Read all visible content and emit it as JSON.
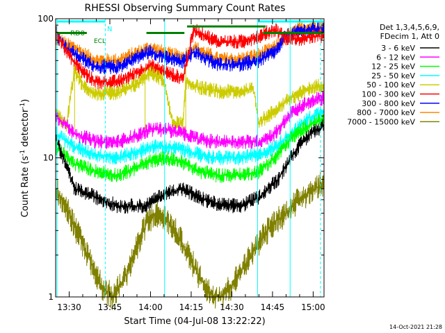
{
  "chart_data": {
    "type": "line",
    "title": "RHESSI Observing Summary Count Rates",
    "xlabel": "Start Time (04-Jul-08 13:22:22)",
    "ylabel_main": "Count Rate (s",
    "ylabel_sup1": "-1",
    "ylabel_mid": " detector",
    "ylabel_sup2": "-1",
    "ylabel_end": ")",
    "yscale": "log",
    "ylim": [
      1,
      100
    ],
    "xlim_minutes": [
      805.0,
      904.0
    ],
    "x_ticks": [
      {
        "label": "13:30",
        "minutes": 810
      },
      {
        "label": "13:45",
        "minutes": 825
      },
      {
        "label": "14:00",
        "minutes": 840
      },
      {
        "label": "14:15",
        "minutes": 855
      },
      {
        "label": "14:30",
        "minutes": 870
      },
      {
        "label": "14:45",
        "minutes": 885
      },
      {
        "label": "15:00",
        "minutes": 900
      }
    ],
    "y_ticks": [
      {
        "label": "1",
        "value": 1
      },
      {
        "label": "10",
        "value": 10
      },
      {
        "label": "100",
        "value": 100
      }
    ],
    "legend_header": [
      "Det 1,3,4,5,6,9,",
      "FDecim 1, Att 0"
    ],
    "legend_position": "right",
    "annotations": {
      "rd0": "RD0",
      "n": "N",
      "ecl": "ECL"
    },
    "night_intervals": [
      [
        805.0,
        827.0
      ],
      [
        844.0,
        872.0
      ]
    ],
    "night_bar_values": [
      95.5,
      88.0
    ],
    "night_marks_minutes": [
      805.5,
      845.2,
      879.5,
      891.5
    ],
    "night_dashed_minutes": [
      823.3,
      902.7
    ],
    "ecl_intervals": [
      [
        805.5,
        810.5
      ],
      [
        857.3,
        872.2
      ]
    ],
    "saa_bar_value": 79.0,
    "dataset_breaks_minutes": [
      812.0,
      838.0,
      853.0,
      879.5
    ],
    "time_stamp": "14-Oct-2021 21:28",
    "series": [
      {
        "name": "3 - 6 keV",
        "color": "#000000",
        "points": [
          [
            805,
            14
          ],
          [
            812,
            6
          ],
          [
            820,
            5.2
          ],
          [
            828,
            4.5
          ],
          [
            838,
            4.5
          ],
          [
            845,
            5.5
          ],
          [
            852,
            6
          ],
          [
            858,
            5.2
          ],
          [
            865,
            4.6
          ],
          [
            873,
            4.5
          ],
          [
            880,
            5.2
          ],
          [
            887,
            7
          ],
          [
            893,
            11
          ],
          [
            899,
            15
          ],
          [
            904,
            17
          ]
        ]
      },
      {
        "name": "6 - 12 keV",
        "color": "#ff00ff",
        "points": [
          [
            805,
            20
          ],
          [
            812,
            15
          ],
          [
            820,
            13
          ],
          [
            828,
            13
          ],
          [
            835,
            14.5
          ],
          [
            840,
            16
          ],
          [
            846,
            16
          ],
          [
            852,
            15
          ],
          [
            858,
            13.5
          ],
          [
            865,
            13
          ],
          [
            873,
            13
          ],
          [
            880,
            13
          ],
          [
            886,
            15
          ],
          [
            892,
            21
          ],
          [
            898,
            25
          ],
          [
            904,
            27
          ]
        ]
      },
      {
        "name": "12 - 25 keV",
        "color": "#00ff00",
        "points": [
          [
            805,
            12
          ],
          [
            812,
            9
          ],
          [
            820,
            8
          ],
          [
            828,
            7.5
          ],
          [
            835,
            8.5
          ],
          [
            840,
            9.5
          ],
          [
            846,
            10
          ],
          [
            852,
            9.2
          ],
          [
            858,
            8
          ],
          [
            865,
            7.5
          ],
          [
            873,
            7.5
          ],
          [
            880,
            8
          ],
          [
            886,
            10
          ],
          [
            892,
            14
          ],
          [
            898,
            17
          ],
          [
            904,
            19
          ]
        ]
      },
      {
        "name": "25 - 50 keV",
        "color": "#00ffff",
        "points": [
          [
            805,
            15
          ],
          [
            812,
            12
          ],
          [
            820,
            10.5
          ],
          [
            828,
            10
          ],
          [
            835,
            11
          ],
          [
            840,
            12
          ],
          [
            846,
            12
          ],
          [
            852,
            11.5
          ],
          [
            858,
            10.5
          ],
          [
            865,
            10
          ],
          [
            873,
            10
          ],
          [
            880,
            10.5
          ],
          [
            886,
            12
          ],
          [
            892,
            15
          ],
          [
            898,
            19
          ],
          [
            904,
            22
          ]
        ]
      },
      {
        "name": "50 - 100 keV",
        "color": "#cccc00",
        "points": [
          [
            805,
            21
          ],
          [
            809,
            17
          ],
          [
            812,
            43
          ],
          [
            815,
            33
          ],
          [
            820,
            29
          ],
          [
            828,
            29
          ],
          [
            835,
            34
          ],
          [
            840,
            41
          ],
          [
            845,
            36
          ],
          [
            848,
            18
          ],
          [
            852,
            17.5
          ],
          [
            853,
            35
          ],
          [
            858,
            32
          ],
          [
            865,
            30
          ],
          [
            873,
            30
          ],
          [
            878,
            31
          ],
          [
            880,
            18
          ],
          [
            886,
            22
          ],
          [
            892,
            27
          ],
          [
            898,
            31
          ],
          [
            904,
            34
          ]
        ]
      },
      {
        "name": "100 - 300 keV",
        "color": "#ff0000",
        "points": [
          [
            805,
            80
          ],
          [
            809,
            58
          ],
          [
            812,
            48
          ],
          [
            816,
            40
          ],
          [
            820,
            35
          ],
          [
            828,
            35
          ],
          [
            835,
            41
          ],
          [
            840,
            46
          ],
          [
            846,
            41
          ],
          [
            852,
            37
          ],
          [
            856,
            84
          ],
          [
            860,
            76
          ],
          [
            865,
            68
          ],
          [
            873,
            68
          ],
          [
            880,
            75
          ],
          [
            886,
            84
          ],
          [
            890,
            73
          ],
          [
            896,
            72
          ],
          [
            904,
            76
          ]
        ]
      },
      {
        "name": "300 - 800 keV",
        "color": "#0000ff",
        "points": [
          [
            805,
            76
          ],
          [
            809,
            62
          ],
          [
            812,
            56
          ],
          [
            816,
            50
          ],
          [
            820,
            45
          ],
          [
            828,
            45
          ],
          [
            835,
            53
          ],
          [
            840,
            58
          ],
          [
            846,
            52
          ],
          [
            852,
            49
          ],
          [
            856,
            58
          ],
          [
            860,
            52
          ],
          [
            865,
            47
          ],
          [
            873,
            47
          ],
          [
            880,
            50
          ],
          [
            886,
            58
          ],
          [
            890,
            75
          ],
          [
            896,
            82
          ],
          [
            904,
            84
          ]
        ]
      },
      {
        "name": "800 - 7000 keV",
        "color": "#ff8800",
        "points": [
          [
            805,
            74
          ],
          [
            809,
            65
          ],
          [
            812,
            62
          ],
          [
            816,
            55
          ],
          [
            820,
            50
          ],
          [
            828,
            50
          ],
          [
            835,
            57
          ],
          [
            840,
            62
          ],
          [
            846,
            56
          ],
          [
            852,
            53
          ],
          [
            856,
            62
          ],
          [
            860,
            57
          ],
          [
            865,
            51
          ],
          [
            873,
            51
          ],
          [
            880,
            55
          ],
          [
            886,
            62
          ],
          [
            890,
            75
          ],
          [
            896,
            86
          ],
          [
            904,
            88
          ]
        ]
      },
      {
        "name": "7000 - 15000 keV",
        "color": "#808000",
        "points": [
          [
            805,
            6
          ],
          [
            809,
            4.5
          ],
          [
            812,
            3.2
          ],
          [
            815,
            2.4
          ],
          [
            818,
            1.8
          ],
          [
            822,
            1.2
          ],
          [
            826,
            1
          ],
          [
            830,
            1.3
          ],
          [
            833,
            1.8
          ],
          [
            836,
            2.6
          ],
          [
            839,
            3.5
          ],
          [
            842,
            4
          ],
          [
            846,
            3.6
          ],
          [
            850,
            2.8
          ],
          [
            854,
            2
          ],
          [
            858,
            1.4
          ],
          [
            862,
            1.05
          ],
          [
            866,
            1
          ],
          [
            870,
            1.2
          ],
          [
            874,
            1.6
          ],
          [
            878,
            2.1
          ],
          [
            882,
            2.8
          ],
          [
            886,
            3.5
          ],
          [
            890,
            4
          ],
          [
            894,
            4.8
          ],
          [
            898,
            5.6
          ],
          [
            902,
            6.2
          ],
          [
            904,
            6.5
          ]
        ]
      }
    ]
  }
}
